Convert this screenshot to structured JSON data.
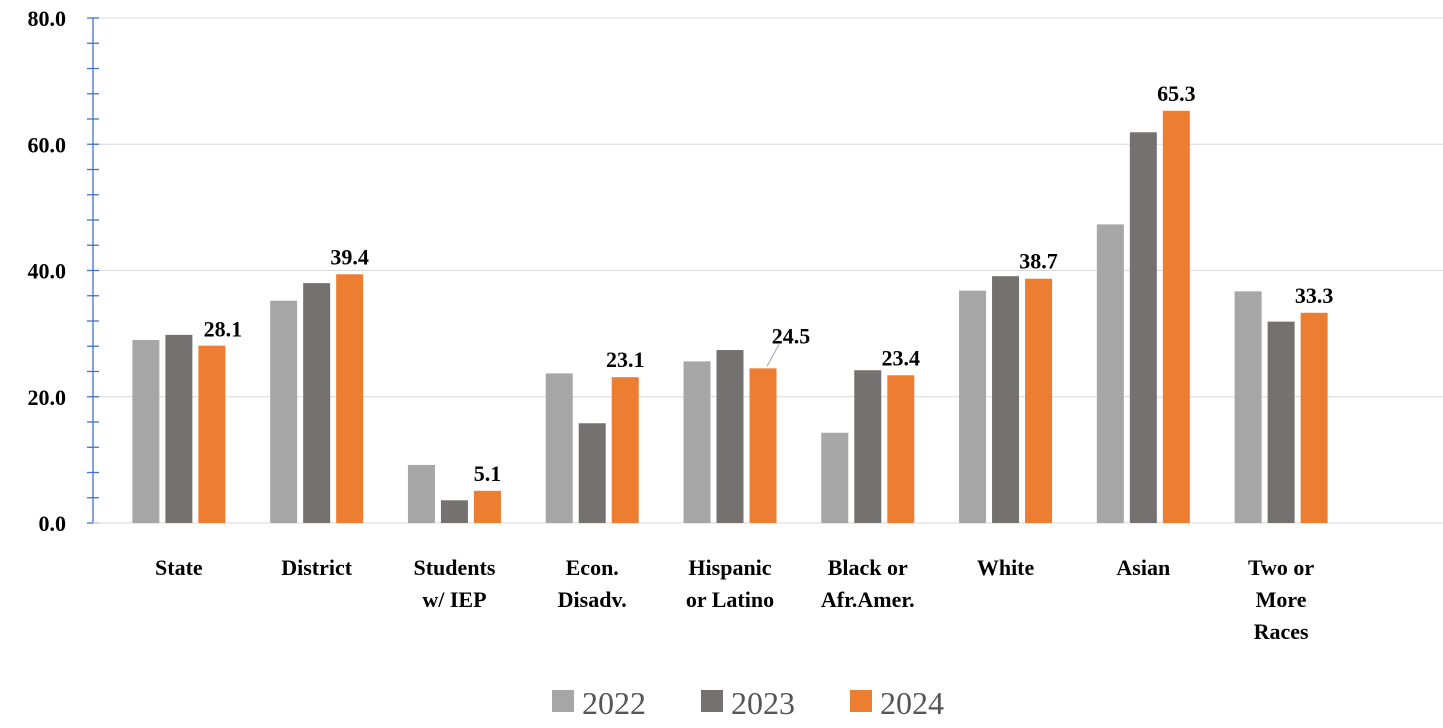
{
  "chart_data": {
    "type": "bar",
    "categories": [
      [
        "State"
      ],
      [
        "District"
      ],
      [
        "Students",
        "w/ IEP"
      ],
      [
        "Econ.",
        "Disadv."
      ],
      [
        "Hispanic",
        "or Latino"
      ],
      [
        "Black or",
        "Afr.Amer."
      ],
      [
        "White"
      ],
      [
        "Asian"
      ],
      [
        "Two or",
        "More",
        "Races"
      ]
    ],
    "series": [
      {
        "name": "2022",
        "color": "#a6a6a6",
        "values": [
          29.0,
          35.2,
          9.2,
          23.7,
          25.6,
          14.3,
          36.8,
          47.3,
          36.7
        ]
      },
      {
        "name": "2023",
        "color": "#767171",
        "values": [
          29.8,
          38.0,
          3.6,
          15.8,
          27.4,
          24.2,
          39.1,
          61.9,
          31.9
        ]
      },
      {
        "name": "2024",
        "color": "#ed7d31",
        "values": [
          28.1,
          39.4,
          5.1,
          23.1,
          24.5,
          23.4,
          38.7,
          65.3,
          33.3
        ]
      }
    ],
    "data_labels": [
      "28.1",
      "39.4",
      "5.1",
      "23.1",
      "24.5",
      "23.4",
      "38.7",
      "65.3",
      "33.3"
    ],
    "yticks": [
      "0.0",
      "20.0",
      "40.0",
      "60.0",
      "80.0"
    ],
    "ylim": [
      0,
      80
    ],
    "grid": true,
    "legend_position": "bottom",
    "title": "",
    "xlabel": "",
    "ylabel": ""
  }
}
